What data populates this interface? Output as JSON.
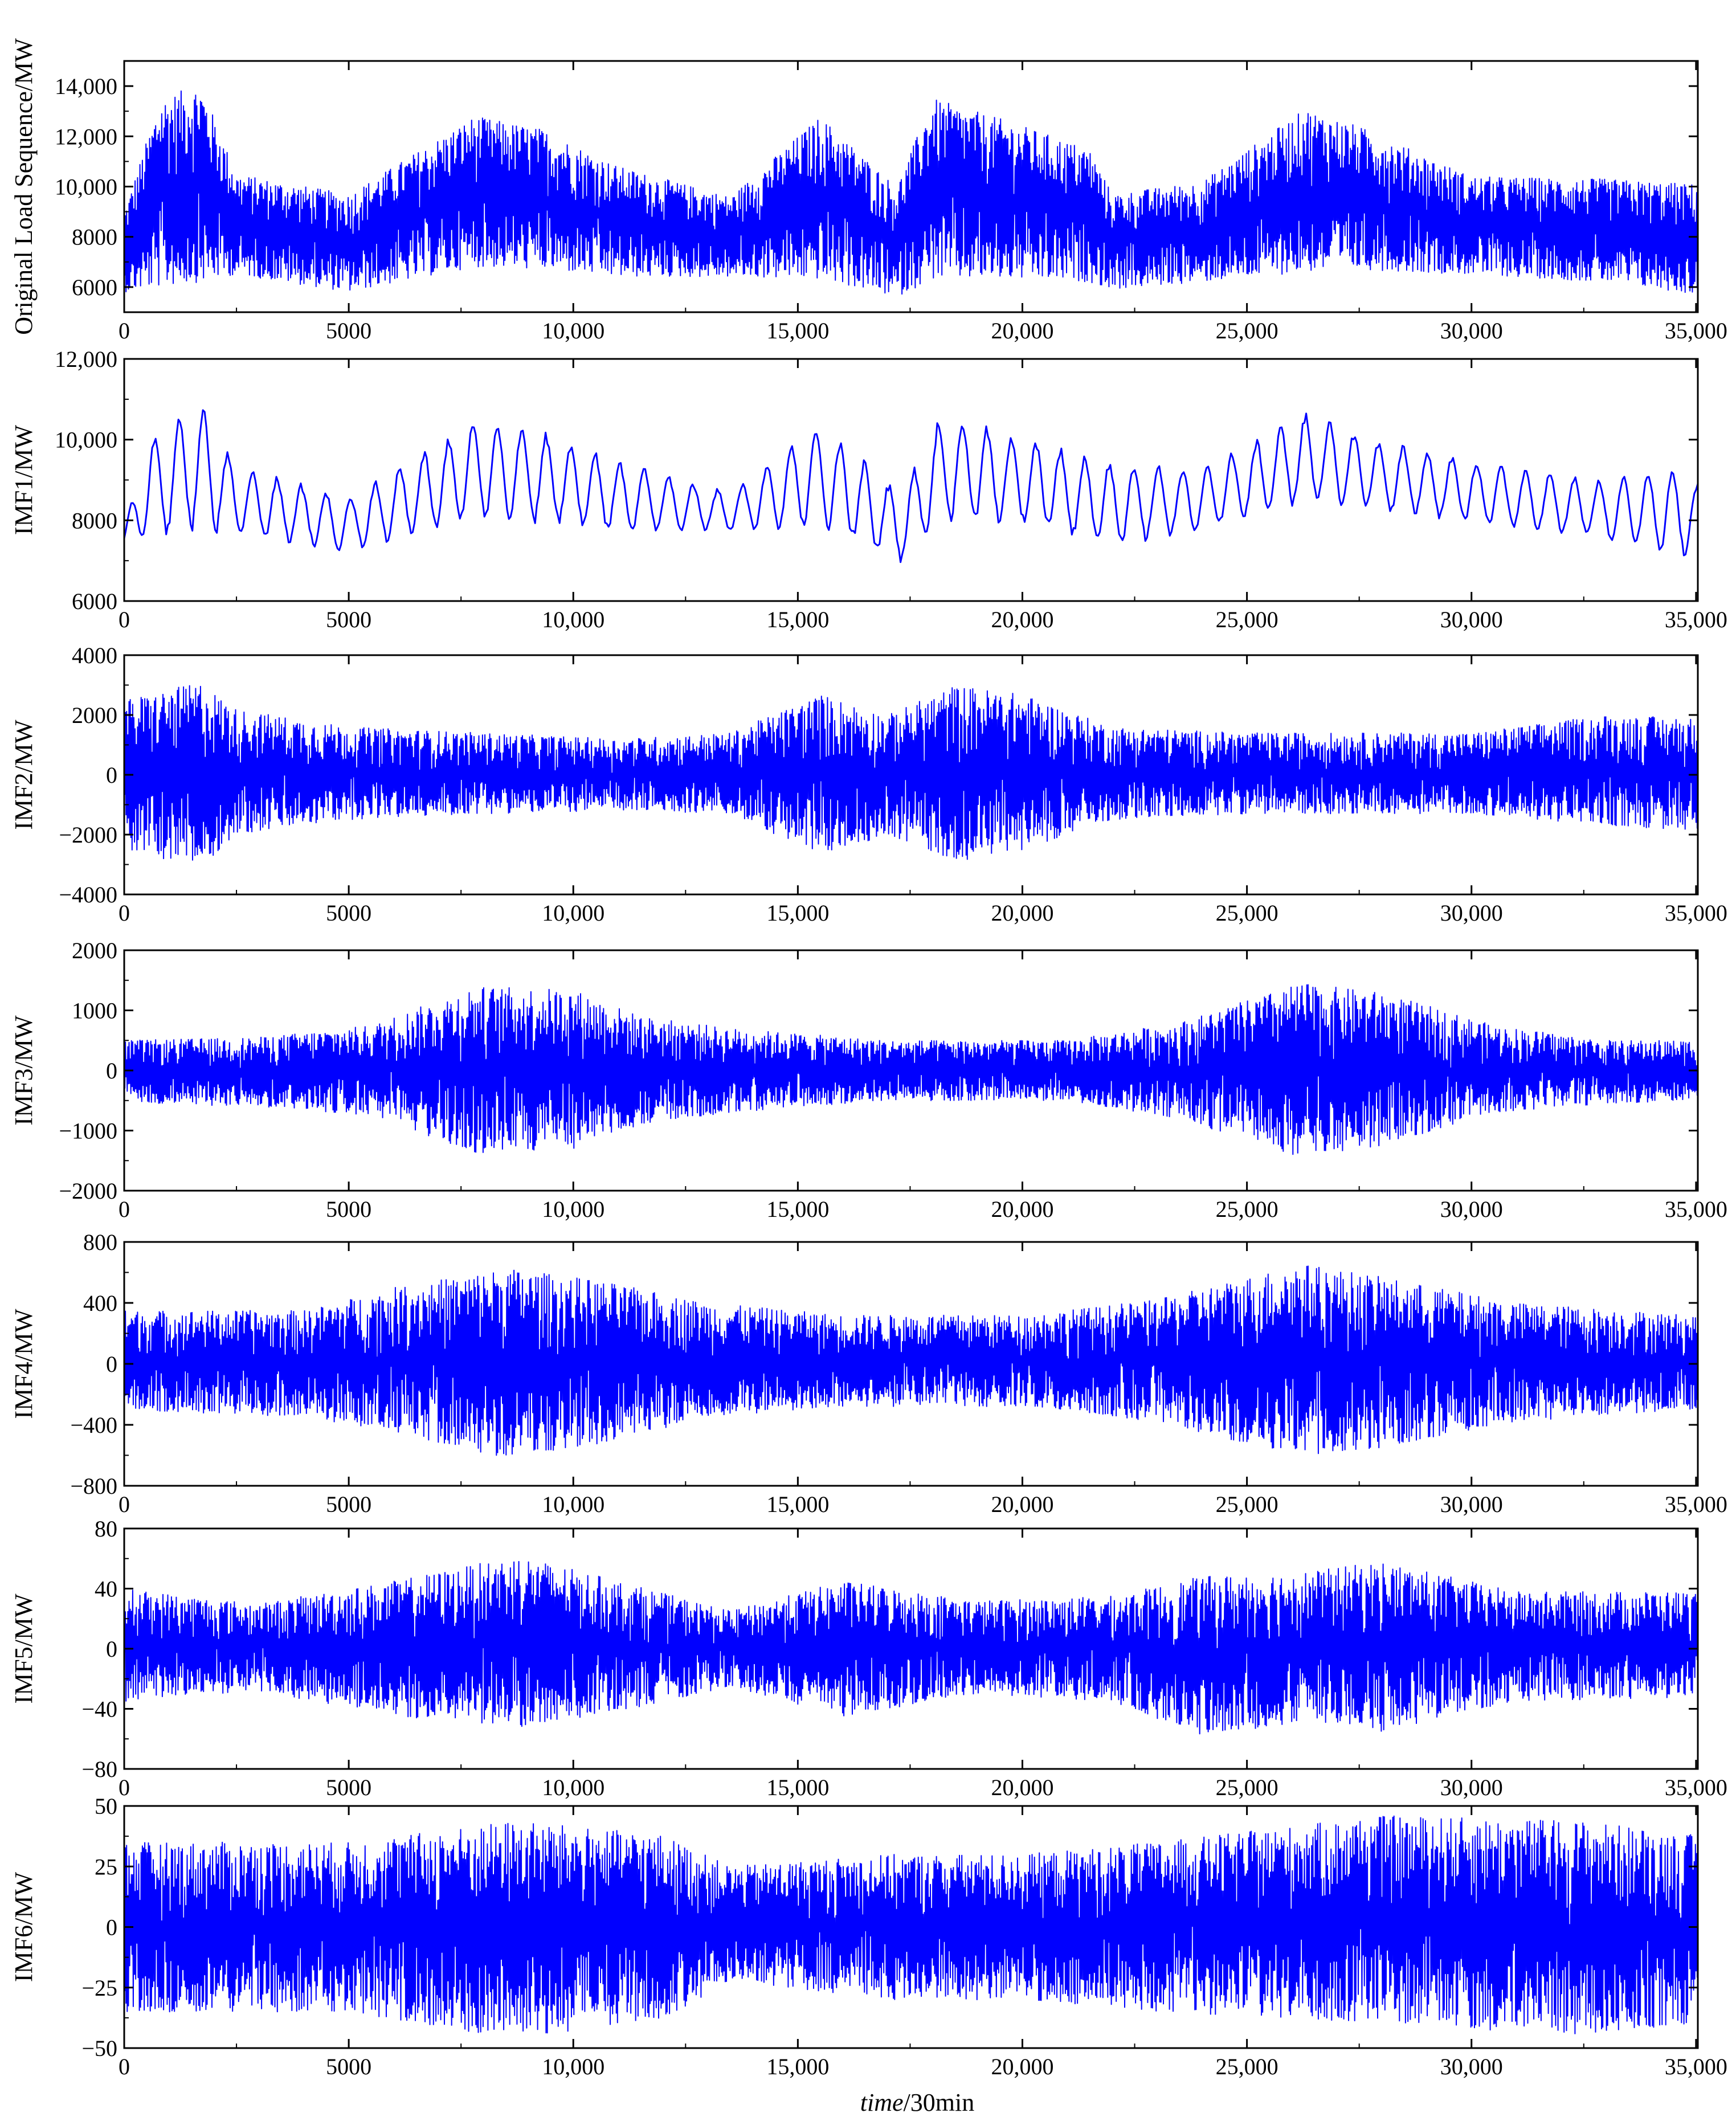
{
  "figure": {
    "x_axis_label_italic": "time",
    "x_axis_label_unit": "/30min",
    "line_color": "#0000ff"
  },
  "chart_data": [
    {
      "type": "line",
      "ylabel": "Original Load Sequence/MW",
      "xlim": [
        0,
        35040
      ],
      "ylim": [
        5000,
        15000
      ],
      "y_ticks": [
        6000,
        8000,
        10000,
        12000,
        14000
      ],
      "y_tick_labels": [
        "6000",
        "8000",
        "10,000",
        "12,000",
        "14,000"
      ],
      "x_ticks": [
        0,
        5000,
        10000,
        15000,
        20000,
        25000,
        30000,
        35000
      ],
      "x_tick_labels": [
        "0",
        "5000",
        "10,000",
        "15,000",
        "20,000",
        "25,000",
        "30,000",
        "35,000"
      ],
      "series": [
        {
          "color": "#0000ff",
          "envelope": [
            {
              "x": 0,
              "lo": 5800,
              "hi": 9000
            },
            {
              "x": 800,
              "lo": 6000,
              "hi": 13500
            },
            {
              "x": 1700,
              "lo": 6200,
              "hi": 14100
            },
            {
              "x": 2500,
              "lo": 6500,
              "hi": 10500
            },
            {
              "x": 5000,
              "lo": 5800,
              "hi": 9700
            },
            {
              "x": 7800,
              "lo": 6800,
              "hi": 12800
            },
            {
              "x": 9300,
              "lo": 6700,
              "hi": 12300
            },
            {
              "x": 11000,
              "lo": 6400,
              "hi": 10800
            },
            {
              "x": 13500,
              "lo": 6400,
              "hi": 9600
            },
            {
              "x": 15500,
              "lo": 6300,
              "hi": 12800
            },
            {
              "x": 17200,
              "lo": 5600,
              "hi": 10000
            },
            {
              "x": 18000,
              "lo": 6300,
              "hi": 13500
            },
            {
              "x": 19700,
              "lo": 6300,
              "hi": 12600
            },
            {
              "x": 21500,
              "lo": 6200,
              "hi": 11500
            },
            {
              "x": 22000,
              "lo": 5900,
              "hi": 9700
            },
            {
              "x": 24000,
              "lo": 6200,
              "hi": 10200
            },
            {
              "x": 26300,
              "lo": 6600,
              "hi": 13100
            },
            {
              "x": 27500,
              "lo": 6700,
              "hi": 12400
            },
            {
              "x": 30000,
              "lo": 6500,
              "hi": 10400
            },
            {
              "x": 33000,
              "lo": 6200,
              "hi": 10300
            },
            {
              "x": 35000,
              "lo": 5700,
              "hi": 10100
            }
          ]
        }
      ]
    },
    {
      "type": "line",
      "ylabel": "IMF1/MW",
      "xlim": [
        0,
        35040
      ],
      "ylim": [
        6000,
        12000
      ],
      "y_ticks": [
        6000,
        8000,
        10000,
        12000
      ],
      "y_tick_labels": [
        "6000",
        "8000",
        "10,000",
        "12,000"
      ],
      "x_ticks": [
        0,
        5000,
        10000,
        15000,
        20000,
        25000,
        30000,
        35000
      ],
      "x_tick_labels": [
        "0",
        "5000",
        "10,000",
        "15,000",
        "20,000",
        "25,000",
        "30,000",
        "35,000"
      ],
      "series": [
        {
          "color": "#0000ff",
          "envelope": [
            {
              "x": 0,
              "lo": 7300,
              "hi": 7800
            },
            {
              "x": 500,
              "lo": 7500,
              "hi": 10000
            },
            {
              "x": 1700,
              "lo": 7700,
              "hi": 11000
            },
            {
              "x": 2500,
              "lo": 7600,
              "hi": 9400
            },
            {
              "x": 5000,
              "lo": 7200,
              "hi": 8600
            },
            {
              "x": 7800,
              "lo": 8000,
              "hi": 10500
            },
            {
              "x": 9000,
              "lo": 7900,
              "hi": 10400
            },
            {
              "x": 11000,
              "lo": 7700,
              "hi": 9500
            },
            {
              "x": 13500,
              "lo": 7700,
              "hi": 8700
            },
            {
              "x": 15500,
              "lo": 7800,
              "hi": 10500
            },
            {
              "x": 17300,
              "lo": 6900,
              "hi": 8700
            },
            {
              "x": 18200,
              "lo": 7900,
              "hi": 10700
            },
            {
              "x": 20000,
              "lo": 7900,
              "hi": 10100
            },
            {
              "x": 22000,
              "lo": 7300,
              "hi": 9500
            },
            {
              "x": 24000,
              "lo": 7700,
              "hi": 9300
            },
            {
              "x": 26300,
              "lo": 8400,
              "hi": 10700
            },
            {
              "x": 28000,
              "lo": 8200,
              "hi": 10000
            },
            {
              "x": 30000,
              "lo": 7900,
              "hi": 9500
            },
            {
              "x": 33000,
              "lo": 7500,
              "hi": 9000
            },
            {
              "x": 34500,
              "lo": 7100,
              "hi": 9400
            },
            {
              "x": 35000,
              "lo": 7100,
              "hi": 9000
            }
          ]
        }
      ]
    },
    {
      "type": "line",
      "ylabel": "IMF2/MW",
      "xlim": [
        0,
        35040
      ],
      "ylim": [
        -4000,
        4000
      ],
      "y_ticks": [
        -4000,
        -2000,
        0,
        2000,
        4000
      ],
      "y_tick_labels": [
        "−4000",
        "−2000",
        "0",
        "2000",
        "4000"
      ],
      "x_ticks": [
        0,
        5000,
        10000,
        15000,
        20000,
        25000,
        30000,
        35000
      ],
      "x_tick_labels": [
        "0",
        "5000",
        "10,000",
        "15,000",
        "20,000",
        "25,000",
        "30,000",
        "35,000"
      ],
      "series": [
        {
          "color": "#0000ff",
          "envelope": [
            {
              "x": 0,
              "lo": -2500,
              "hi": 2500
            },
            {
              "x": 1700,
              "lo": -3100,
              "hi": 3100
            },
            {
              "x": 2500,
              "lo": -2000,
              "hi": 2200
            },
            {
              "x": 5000,
              "lo": -1500,
              "hi": 1600
            },
            {
              "x": 8000,
              "lo": -1300,
              "hi": 1400
            },
            {
              "x": 11000,
              "lo": -1200,
              "hi": 1200
            },
            {
              "x": 13500,
              "lo": -1300,
              "hi": 1400
            },
            {
              "x": 15500,
              "lo": -2700,
              "hi": 2700
            },
            {
              "x": 17000,
              "lo": -2000,
              "hi": 2000
            },
            {
              "x": 18500,
              "lo": -2900,
              "hi": 3000
            },
            {
              "x": 20000,
              "lo": -2500,
              "hi": 2700
            },
            {
              "x": 22000,
              "lo": -1500,
              "hi": 1600
            },
            {
              "x": 25000,
              "lo": -1300,
              "hi": 1400
            },
            {
              "x": 30000,
              "lo": -1300,
              "hi": 1400
            },
            {
              "x": 33000,
              "lo": -1700,
              "hi": 2000
            },
            {
              "x": 35000,
              "lo": -1900,
              "hi": 1900
            }
          ]
        }
      ]
    },
    {
      "type": "line",
      "ylabel": "IMF3/MW",
      "xlim": [
        0,
        35040
      ],
      "ylim": [
        -2000,
        2000
      ],
      "y_ticks": [
        -2000,
        -1000,
        0,
        1000,
        2000
      ],
      "y_tick_labels": [
        "−2000",
        "−1000",
        "0",
        "1000",
        "2000"
      ],
      "x_ticks": [
        0,
        5000,
        10000,
        15000,
        20000,
        25000,
        30000,
        35000
      ],
      "x_tick_labels": [
        "0",
        "5000",
        "10,000",
        "15,000",
        "20,000",
        "25,000",
        "30,000",
        "35,000"
      ],
      "series": [
        {
          "color": "#0000ff",
          "envelope": [
            {
              "x": 0,
              "lo": -550,
              "hi": 500
            },
            {
              "x": 3000,
              "lo": -600,
              "hi": 550
            },
            {
              "x": 5500,
              "lo": -750,
              "hi": 750
            },
            {
              "x": 7800,
              "lo": -1400,
              "hi": 1400
            },
            {
              "x": 10000,
              "lo": -1300,
              "hi": 1350
            },
            {
              "x": 11500,
              "lo": -900,
              "hi": 900
            },
            {
              "x": 13500,
              "lo": -700,
              "hi": 700
            },
            {
              "x": 17000,
              "lo": -500,
              "hi": 500
            },
            {
              "x": 21000,
              "lo": -500,
              "hi": 500
            },
            {
              "x": 23500,
              "lo": -800,
              "hi": 800
            },
            {
              "x": 26200,
              "lo": -1450,
              "hi": 1450
            },
            {
              "x": 28000,
              "lo": -1250,
              "hi": 1300
            },
            {
              "x": 30500,
              "lo": -700,
              "hi": 750
            },
            {
              "x": 33000,
              "lo": -550,
              "hi": 500
            },
            {
              "x": 35000,
              "lo": -500,
              "hi": 500
            }
          ]
        }
      ]
    },
    {
      "type": "line",
      "ylabel": "IMF4/MW",
      "xlim": [
        0,
        35040
      ],
      "ylim": [
        -800,
        800
      ],
      "y_ticks": [
        -800,
        -400,
        0,
        400,
        800
      ],
      "y_tick_labels": [
        "−800",
        "−400",
        "0",
        "400",
        "800"
      ],
      "x_ticks": [
        0,
        5000,
        10000,
        15000,
        20000,
        25000,
        30000,
        35000
      ],
      "x_tick_labels": [
        "0",
        "5000",
        "10,000",
        "15,000",
        "20,000",
        "25,000",
        "30,000",
        "35,000"
      ],
      "series": [
        {
          "color": "#0000ff",
          "envelope": [
            {
              "x": 0,
              "lo": -300,
              "hi": 350
            },
            {
              "x": 4000,
              "lo": -350,
              "hi": 350
            },
            {
              "x": 6000,
              "lo": -450,
              "hi": 500
            },
            {
              "x": 8500,
              "lo": -620,
              "hi": 630
            },
            {
              "x": 10500,
              "lo": -550,
              "hi": 550
            },
            {
              "x": 13000,
              "lo": -350,
              "hi": 400
            },
            {
              "x": 16000,
              "lo": -280,
              "hi": 320
            },
            {
              "x": 20000,
              "lo": -280,
              "hi": 320
            },
            {
              "x": 23000,
              "lo": -380,
              "hi": 420
            },
            {
              "x": 26200,
              "lo": -620,
              "hi": 660
            },
            {
              "x": 28000,
              "lo": -550,
              "hi": 570
            },
            {
              "x": 31000,
              "lo": -380,
              "hi": 400
            },
            {
              "x": 35000,
              "lo": -300,
              "hi": 320
            }
          ]
        }
      ]
    },
    {
      "type": "line",
      "ylabel": "IMF5/MW",
      "xlim": [
        0,
        35040
      ],
      "ylim": [
        -80,
        80
      ],
      "y_ticks": [
        -80,
        -40,
        0,
        40,
        80
      ],
      "y_tick_labels": [
        "−80",
        "−40",
        "0",
        "40",
        "80"
      ],
      "x_ticks": [
        0,
        5000,
        10000,
        15000,
        20000,
        25000,
        30000,
        35000
      ],
      "x_tick_labels": [
        "0",
        "5000",
        "10,000",
        "15,000",
        "20,000",
        "25,000",
        "30,000",
        "35,000"
      ],
      "series": [
        {
          "color": "#0000ff",
          "envelope": [
            {
              "x": 0,
              "lo": -35,
              "hi": 40
            },
            {
              "x": 3000,
              "lo": -28,
              "hi": 30
            },
            {
              "x": 6000,
              "lo": -45,
              "hi": 45
            },
            {
              "x": 8800,
              "lo": -52,
              "hi": 62
            },
            {
              "x": 11000,
              "lo": -42,
              "hi": 45
            },
            {
              "x": 13500,
              "lo": -25,
              "hi": 25
            },
            {
              "x": 16000,
              "lo": -45,
              "hi": 45
            },
            {
              "x": 19000,
              "lo": -30,
              "hi": 32
            },
            {
              "x": 22000,
              "lo": -35,
              "hi": 35
            },
            {
              "x": 24000,
              "lo": -58,
              "hi": 48
            },
            {
              "x": 26500,
              "lo": -48,
              "hi": 52
            },
            {
              "x": 28000,
              "lo": -55,
              "hi": 58
            },
            {
              "x": 31000,
              "lo": -35,
              "hi": 38
            },
            {
              "x": 35000,
              "lo": -32,
              "hi": 38
            }
          ]
        }
      ]
    },
    {
      "type": "line",
      "ylabel": "IMF6/MW",
      "xlim": [
        0,
        35040
      ],
      "ylim": [
        -50,
        50
      ],
      "y_ticks": [
        -50,
        -25,
        0,
        25,
        50
      ],
      "y_tick_labels": [
        "−50",
        "−25",
        "0",
        "25",
        "50"
      ],
      "x_ticks": [
        0,
        5000,
        10000,
        15000,
        20000,
        25000,
        30000,
        35000
      ],
      "x_tick_labels": [
        "0",
        "5000",
        "10,000",
        "15,000",
        "20,000",
        "25,000",
        "30,000",
        "35,000"
      ],
      "series": [
        {
          "color": "#0000ff",
          "envelope": [
            {
              "x": 0,
              "lo": -35,
              "hi": 35
            },
            {
              "x": 5000,
              "lo": -35,
              "hi": 35
            },
            {
              "x": 8700,
              "lo": -47,
              "hi": 44
            },
            {
              "x": 12000,
              "lo": -38,
              "hi": 38
            },
            {
              "x": 13500,
              "lo": -22,
              "hi": 25
            },
            {
              "x": 17000,
              "lo": -30,
              "hi": 30
            },
            {
              "x": 20000,
              "lo": -30,
              "hi": 30
            },
            {
              "x": 23000,
              "lo": -35,
              "hi": 35
            },
            {
              "x": 28000,
              "lo": -40,
              "hi": 46
            },
            {
              "x": 32500,
              "lo": -45,
              "hi": 44
            },
            {
              "x": 35000,
              "lo": -40,
              "hi": 38
            }
          ]
        }
      ]
    }
  ]
}
